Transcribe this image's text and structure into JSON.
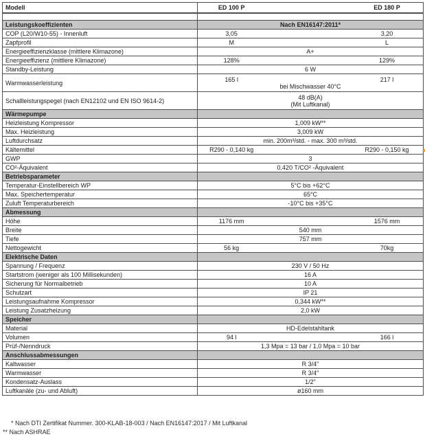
{
  "colors": {
    "section_row_bg": "#c6c6c6",
    "table_border": "#4e4e4e",
    "text": "#222222",
    "marker": "#ee9f3c"
  },
  "table": {
    "header": {
      "label": "Modell",
      "col1": "ED 100 P",
      "col2": "ED 180 P"
    },
    "rows": [
      {
        "type": "empty"
      },
      {
        "type": "section",
        "label": "Leistungskoeffizienten",
        "value": "Nach EN16147:2011*"
      },
      {
        "type": "pair",
        "label": "COP (L20/W10-55) - Innenluft",
        "v1": "3,05",
        "v2": "3,20"
      },
      {
        "type": "pair",
        "label": "Zapfprofil",
        "v1": "M",
        "v2": "L"
      },
      {
        "type": "span",
        "label": "Energieeffizienzklasse (mittlere Klimazone)",
        "value": "A+"
      },
      {
        "type": "pair",
        "label": "Energieeffizienz (mittlere Klimazone)",
        "v1": "128%",
        "v2": "129%"
      },
      {
        "type": "span",
        "label": "Standby-Leistung",
        "value": "6 W"
      },
      {
        "type": "pair",
        "label": "Warmwasserleistung",
        "v1": "165 l",
        "v2": "217 l",
        "note": "bei Mischwasser 40°C"
      },
      {
        "type": "span",
        "label": "Schallleistungspegel (nach EN12102 und EN ISO 9614-2)",
        "value": "48 dB(A)",
        "note": "(Mit Luftkanal)"
      },
      {
        "type": "section",
        "label": "Wärmepumpe",
        "value": ""
      },
      {
        "type": "span",
        "label": "Heizleistung Kompressor",
        "value": "1,009 kW**"
      },
      {
        "type": "span",
        "label": "Max. Heizleistung",
        "value": "3,009 kW"
      },
      {
        "type": "span",
        "label": "Luftdurchsatz",
        "value": "min. 200m³/std. - max. 300 m³/std."
      },
      {
        "type": "pair",
        "label": "Kältemittel",
        "v1": "R290 - 0,140 kg",
        "v2": "R290 - 0,150 kg"
      },
      {
        "type": "span",
        "label": "GWP",
        "value": "3"
      },
      {
        "type": "span",
        "label": "CO²-Äquivalent",
        "value": "0,420 T/CO² -Äquivalent"
      },
      {
        "type": "section",
        "label": "Betriebsparameter",
        "value": ""
      },
      {
        "type": "span",
        "label": "Temperatur-Einstellbereich WP",
        "value": "5°C bis +62°C"
      },
      {
        "type": "span",
        "label": "Max. Speichertemperatur",
        "value": "65°C"
      },
      {
        "type": "span",
        "label": "Zuluft Temperaturbereich",
        "value": "-10°C bis +35°C"
      },
      {
        "type": "section",
        "label": "Abmessung",
        "value": ""
      },
      {
        "type": "pair",
        "label": "Höhe",
        "v1": "1176 mm",
        "v2": "1576 mm"
      },
      {
        "type": "span",
        "label": "Breite",
        "value": "540 mm"
      },
      {
        "type": "span",
        "label": "Tiefe",
        "value": "757 mm"
      },
      {
        "type": "pair",
        "label": "Nettogewicht",
        "v1": "56 kg",
        "v2": "70kg"
      },
      {
        "type": "section",
        "label": "Elektrische Daten",
        "value": ""
      },
      {
        "type": "span",
        "label": "Spannung / Frequenz",
        "value": "230 V / 50 Hz"
      },
      {
        "type": "span",
        "label": "Startstrom (weniger als 100 Millisekunden)",
        "value": "16 A"
      },
      {
        "type": "span",
        "label": "Sicherung für Normalbetrieb",
        "value": "10 A"
      },
      {
        "type": "span",
        "label": "Schutzart",
        "value": "IP 21"
      },
      {
        "type": "span",
        "label": "Leistungsaufnahme Kompressor",
        "value": "0,344 kW**"
      },
      {
        "type": "span",
        "label": "Leistung Zusatzheizung",
        "value": "2,0 kW"
      },
      {
        "type": "section",
        "label": "Speicher",
        "value": ""
      },
      {
        "type": "span",
        "label": "Material",
        "value": "HD-Edelstahltank"
      },
      {
        "type": "pair",
        "label": "Volumen",
        "v1": "94 l",
        "v2": "166 l"
      },
      {
        "type": "span",
        "label": "Prüf-/Nenndruck",
        "value": "1,3 Mpa = 13 bar / 1,0 Mpa = 10 bar"
      },
      {
        "type": "section",
        "label": "Anschlussabmessungen",
        "value": ""
      },
      {
        "type": "span",
        "label": "Kaltwasser",
        "value": "R 3/4\""
      },
      {
        "type": "span",
        "label": "Warmwasser",
        "value": "R 3/4\""
      },
      {
        "type": "span",
        "label": "Kondensatz-Auslass",
        "value": "1/2\""
      },
      {
        "type": "span",
        "label": "Luftkanäle (zu- und Abluft)",
        "value": "ø160 mm"
      }
    ]
  },
  "footnotes": {
    "line1": "* Nach DTI Zertifikat Nummer. 300-KLAB-18-003  / Nach EN16147:2017 / Mit Luftkanal",
    "line2": "** Nach ASHRAE"
  }
}
